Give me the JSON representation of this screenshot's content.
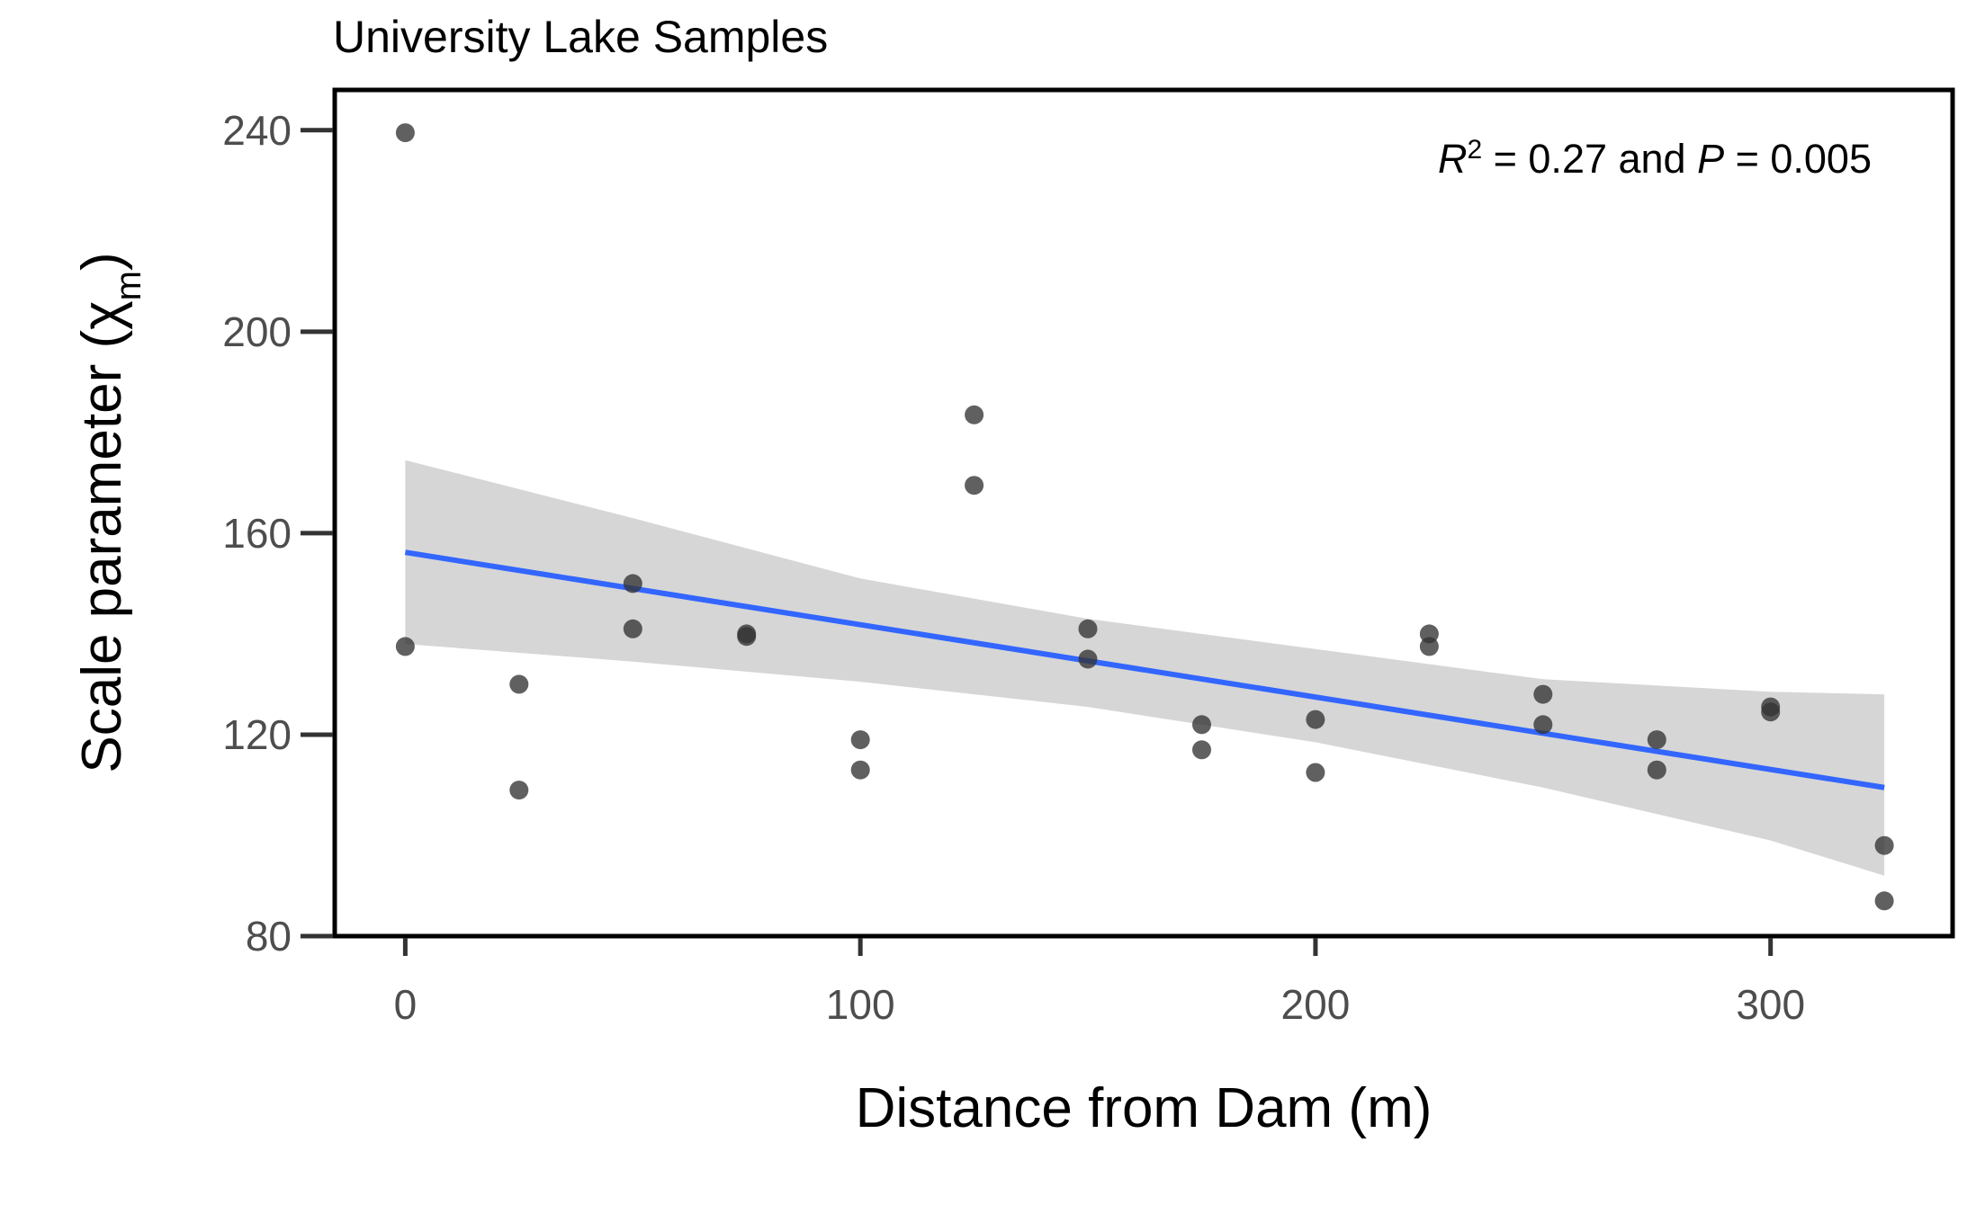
{
  "chart_data": {
    "type": "scatter",
    "title": "University Lake Samples",
    "xlabel": "Distance from Dam (m)",
    "ylabel": {
      "text": "Scale parameter (",
      "symbol": "χ",
      "subscript": "m",
      "close": ")"
    },
    "xlim": [
      -15.5,
      340
    ],
    "ylim": [
      80,
      248
    ],
    "xticks": [
      "0",
      "100",
      "200",
      "300"
    ],
    "xtick_values": [
      0,
      100,
      200,
      300
    ],
    "yticks": [
      "80",
      "120",
      "160",
      "200",
      "240"
    ],
    "ytick_values": [
      80,
      120,
      160,
      200,
      240
    ],
    "grid": false,
    "annotation": {
      "r_symbol": "R",
      "r_exp": "2",
      "r_eq": " = 0.27 and ",
      "p_symbol": "P",
      "p_eq": " = 0.005"
    },
    "points": [
      {
        "x": 0,
        "y": 239.5
      },
      {
        "x": 0,
        "y": 137.5
      },
      {
        "x": 25,
        "y": 130
      },
      {
        "x": 25,
        "y": 109
      },
      {
        "x": 50,
        "y": 150
      },
      {
        "x": 50,
        "y": 141
      },
      {
        "x": 75,
        "y": 140
      },
      {
        "x": 75,
        "y": 139.5
      },
      {
        "x": 100,
        "y": 119
      },
      {
        "x": 100,
        "y": 113
      },
      {
        "x": 125,
        "y": 183.5
      },
      {
        "x": 125,
        "y": 169.5
      },
      {
        "x": 150,
        "y": 141
      },
      {
        "x": 150,
        "y": 135
      },
      {
        "x": 175,
        "y": 122
      },
      {
        "x": 175,
        "y": 117
      },
      {
        "x": 200,
        "y": 123
      },
      {
        "x": 200,
        "y": 112.5
      },
      {
        "x": 225,
        "y": 140
      },
      {
        "x": 225,
        "y": 137.5
      },
      {
        "x": 250,
        "y": 128
      },
      {
        "x": 250,
        "y": 122
      },
      {
        "x": 275,
        "y": 119
      },
      {
        "x": 275,
        "y": 113
      },
      {
        "x": 300,
        "y": 125.5
      },
      {
        "x": 300,
        "y": 124.5
      },
      {
        "x": 325,
        "y": 98
      },
      {
        "x": 325,
        "y": 87
      }
    ],
    "fit_line": {
      "x": [
        0,
        325
      ],
      "y": [
        156.2,
        109.5
      ],
      "color": "#3366ff"
    },
    "confidence_band": {
      "x": [
        0,
        50,
        100,
        150,
        200,
        250,
        300,
        325
      ],
      "lower": [
        138,
        134.5,
        130.5,
        125.5,
        118.5,
        109.5,
        99,
        92
      ],
      "upper": [
        174.5,
        163,
        151,
        143,
        137,
        131,
        128.5,
        128
      ],
      "color": "#d6d6d6"
    },
    "point_color": "#333333"
  }
}
